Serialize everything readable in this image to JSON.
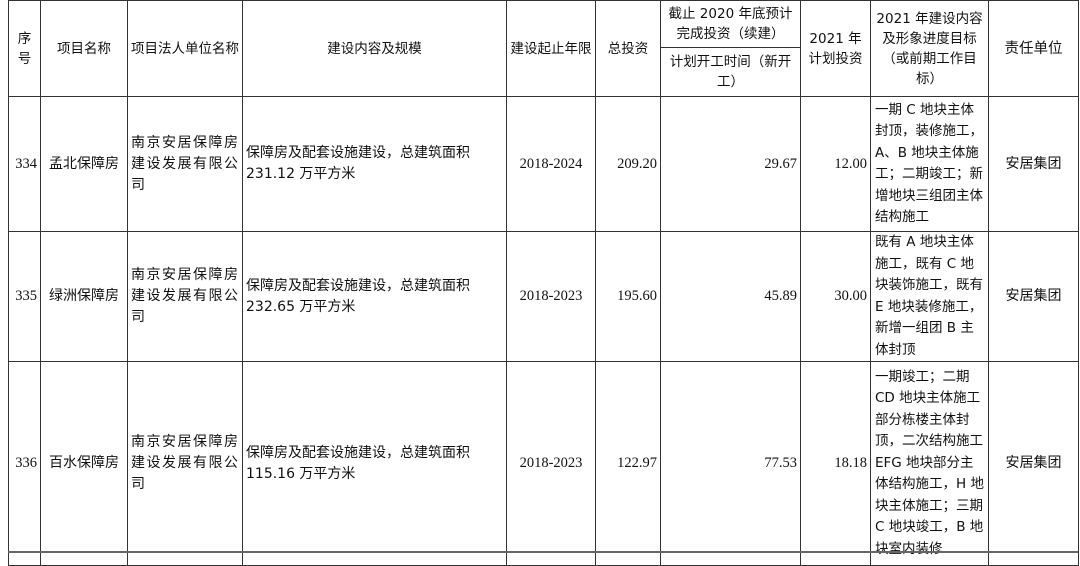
{
  "table": {
    "headers": {
      "seq": "序号",
      "name": "项目名称",
      "owner": "项目法人单位名称",
      "scope": "建设内容及规模",
      "period": "建设起止年限",
      "total": "总投资",
      "cum_top": "截止 2020 年底预计完成投资（续建）",
      "cum_bottom": "计划开工时间（新开工）",
      "plan2021": "2021 年计划投资",
      "progress": "2021 年建设内容及形象进度目标（或前期工作目标）",
      "unit": "责任单位"
    },
    "rows": [
      {
        "seq": "334",
        "name": "孟北保障房",
        "owner": "南京安居保障房建设发展有限公司",
        "scope": "保障房及配套设施建设，总建筑面积 231.12 万平方米",
        "period": "2018-2024",
        "total": "209.20",
        "cum": "29.67",
        "plan2021": "12.00",
        "progress": "一期 C 地块主体封顶，装修施工，A、B 地块主体施工；二期竣工；新增地块三组团主体结构施工",
        "unit": "安居集团"
      },
      {
        "seq": "335",
        "name": "绿洲保障房",
        "owner": "南京安居保障房建设发展有限公司",
        "scope": "保障房及配套设施建设，总建筑面积 232.65 万平方米",
        "period": "2018-2023",
        "total": "195.60",
        "cum": "45.89",
        "plan2021": "30.00",
        "progress": "既有 A 地块主体施工，既有 C 地块装饰施工，既有 E 地块装修施工，新增一组团 B 主体封顶",
        "unit": "安居集团"
      },
      {
        "seq": "336",
        "name": "百水保障房",
        "owner": "南京安居保障房建设发展有限公司",
        "scope": "保障房及配套设施建设，总建筑面积 115.16 万平方米",
        "period": "2018-2023",
        "total": "122.97",
        "cum": "77.53",
        "plan2021": "18.18",
        "progress": "一期竣工；二期 CD 地块主体施工部分栋楼主体封顶，二次结构施工 EFG 地块部分主体结构施工，H 地块主体施工；三期 C 地块竣工，B 地块室内装修",
        "unit": "安居集团"
      }
    ]
  }
}
